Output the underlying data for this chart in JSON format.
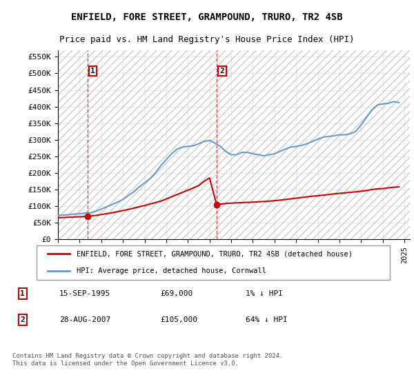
{
  "title": "ENFIELD, FORE STREET, GRAMPOUND, TRURO, TR2 4SB",
  "subtitle": "Price paid vs. HM Land Registry's House Price Index (HPI)",
  "ylabel_values": [
    "£0",
    "£50K",
    "£100K",
    "£150K",
    "£200K",
    "£250K",
    "£300K",
    "£350K",
    "£400K",
    "£450K",
    "£500K",
    "£550K"
  ],
  "ylim": [
    0,
    570000
  ],
  "xlim_start": 1993.0,
  "xlim_end": 2025.5,
  "legend_line1": "ENFIELD, FORE STREET, GRAMPOUND, TRURO, TR2 4SB (detached house)",
  "legend_line2": "HPI: Average price, detached house, Cornwall",
  "annotation1_label": "1",
  "annotation1_date": "15-SEP-1995",
  "annotation1_price": "£69,000",
  "annotation1_hpi": "1% ↓ HPI",
  "annotation2_label": "2",
  "annotation2_date": "28-AUG-2007",
  "annotation2_price": "£105,000",
  "annotation2_hpi": "64% ↓ HPI",
  "footer": "Contains HM Land Registry data © Crown copyright and database right 2024.\nThis data is licensed under the Open Government Licence v3.0.",
  "property_color": "#cc0000",
  "hpi_color": "#6699cc",
  "background_color": "#ffffff",
  "grid_color": "#cccccc",
  "hatch_color": "#dddddd",
  "sale1_x": 1995.71,
  "sale1_y": 69000,
  "sale2_x": 2007.65,
  "sale2_y": 105000,
  "hpi_x": [
    1993.0,
    1993.5,
    1994.0,
    1994.5,
    1995.0,
    1995.5,
    1996.0,
    1996.5,
    1997.0,
    1997.5,
    1998.0,
    1998.5,
    1999.0,
    1999.5,
    2000.0,
    2000.5,
    2001.0,
    2001.5,
    2002.0,
    2002.5,
    2003.0,
    2003.5,
    2004.0,
    2004.5,
    2005.0,
    2005.5,
    2006.0,
    2006.5,
    2007.0,
    2007.5,
    2008.0,
    2008.5,
    2009.0,
    2009.5,
    2010.0,
    2010.5,
    2011.0,
    2011.5,
    2012.0,
    2012.5,
    2013.0,
    2013.5,
    2014.0,
    2014.5,
    2015.0,
    2015.5,
    2016.0,
    2016.5,
    2017.0,
    2017.5,
    2018.0,
    2018.5,
    2019.0,
    2019.5,
    2020.0,
    2020.5,
    2021.0,
    2021.5,
    2022.0,
    2022.5,
    2023.0,
    2023.5,
    2024.0,
    2024.5
  ],
  "hpi_y": [
    72000,
    73000,
    74000,
    76000,
    77000,
    79000,
    80000,
    85000,
    91000,
    98000,
    105000,
    112000,
    120000,
    132000,
    143000,
    158000,
    170000,
    183000,
    200000,
    222000,
    240000,
    258000,
    272000,
    278000,
    280000,
    282000,
    288000,
    295000,
    298000,
    290000,
    280000,
    265000,
    255000,
    255000,
    262000,
    262000,
    258000,
    255000,
    252000,
    255000,
    258000,
    265000,
    272000,
    278000,
    280000,
    283000,
    288000,
    295000,
    302000,
    308000,
    310000,
    312000,
    315000,
    315000,
    318000,
    325000,
    345000,
    368000,
    390000,
    405000,
    408000,
    410000,
    415000,
    412000
  ],
  "property_x": [
    1993.0,
    1995.71,
    1996.5,
    1998.0,
    1999.5,
    2001.0,
    2002.5,
    2004.0,
    2005.0,
    2006.0,
    2006.5,
    2007.0,
    2007.65,
    2008.5,
    2009.5,
    2011.0,
    2012.5,
    2013.5,
    2014.5,
    2015.5,
    2016.5,
    2017.5,
    2018.5,
    2019.5,
    2020.5,
    2021.5,
    2022.0,
    2022.5,
    2023.0,
    2023.5,
    2024.0,
    2024.5
  ],
  "property_y": [
    65000,
    69000,
    72000,
    80000,
    90000,
    102000,
    115000,
    135000,
    148000,
    162000,
    175000,
    185000,
    105000,
    108000,
    110000,
    112000,
    115000,
    118000,
    122000,
    126000,
    130000,
    133000,
    137000,
    140000,
    143000,
    147000,
    150000,
    152000,
    153000,
    155000,
    157000,
    158000
  ]
}
